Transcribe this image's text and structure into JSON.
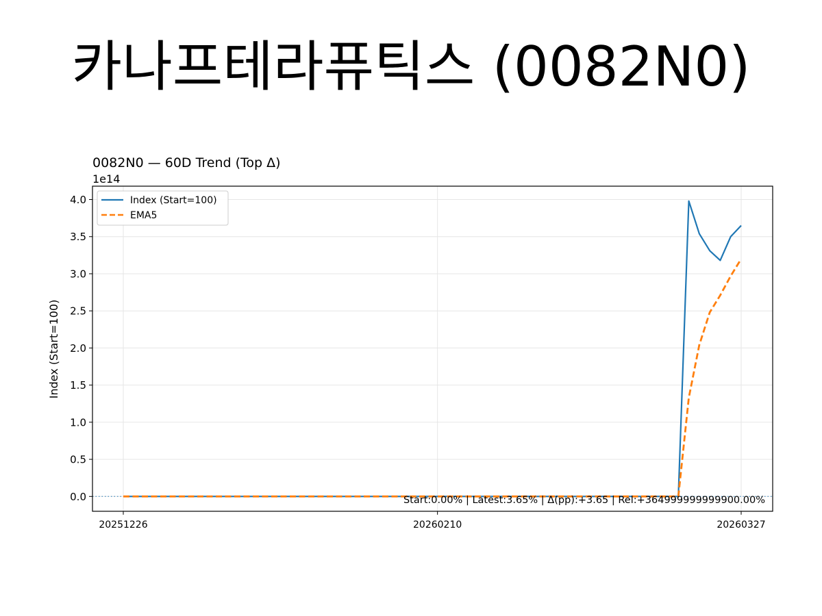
{
  "figure": {
    "suptitle": "카나프테라퓨틱스 (0082N0)"
  },
  "chart_data": {
    "type": "line",
    "title": "0082N0 — 60D Trend (Top Δ)",
    "ylabel": "Index (Start=100)",
    "xlabel": "",
    "y_offset_label": "1e14",
    "ylim": [
      -0.2,
      4.18
    ],
    "yticks": [
      0.0,
      0.5,
      1.0,
      1.5,
      2.0,
      2.5,
      3.0,
      3.5,
      4.0
    ],
    "ytick_labels": [
      "0.0",
      "0.5",
      "1.0",
      "1.5",
      "2.0",
      "2.5",
      "3.0",
      "3.5",
      "4.0"
    ],
    "xtick_labels": [
      "20251226",
      "20260210",
      "20260327"
    ],
    "xtick_index": [
      0,
      30,
      59
    ],
    "grid": true,
    "legend_position": "upper left",
    "annotation": "Start:0.00% | Latest:3.65% | Δ(pp):+3.65 | Rel:+364999999999900.00%",
    "baseline": 0,
    "series": [
      {
        "name": "Index (Start=100)",
        "color": "#1f77b4",
        "style": "solid",
        "values": [
          0,
          0,
          0,
          0,
          0,
          0,
          0,
          0,
          0,
          0,
          0,
          0,
          0,
          0,
          0,
          0,
          0,
          0,
          0,
          0,
          0,
          0,
          0,
          0,
          0,
          0,
          0,
          0,
          0,
          0,
          0,
          0,
          0,
          0,
          0,
          0,
          0,
          0,
          0,
          0,
          0,
          0,
          0,
          0,
          0,
          0,
          0,
          0,
          0,
          0,
          0,
          0,
          0,
          0,
          3.98,
          3.54,
          3.31,
          3.18,
          3.5,
          3.65
        ]
      },
      {
        "name": "EMA5",
        "color": "#ff7f0e",
        "style": "dashed",
        "values": [
          0,
          0,
          0,
          0,
          0,
          0,
          0,
          0,
          0,
          0,
          0,
          0,
          0,
          0,
          0,
          0,
          0,
          0,
          0,
          0,
          0,
          0,
          0,
          0,
          0,
          0,
          0,
          0,
          0,
          0,
          0,
          0,
          0,
          0,
          0,
          0,
          0,
          0,
          0,
          0,
          0,
          0,
          0,
          0,
          0,
          0,
          0,
          0,
          0,
          0,
          0,
          0,
          0,
          0,
          1.33,
          2.04,
          2.48,
          2.71,
          2.97,
          3.2
        ]
      }
    ]
  }
}
